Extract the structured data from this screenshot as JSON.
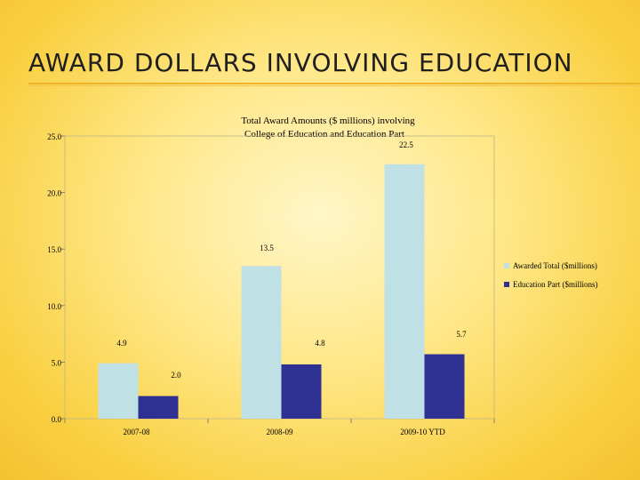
{
  "slide": {
    "title": "AWARD DOLLARS INVOLVING EDUCATION"
  },
  "chart_data": {
    "type": "bar",
    "title": "Total Award Amounts ($ millions) involving College of Education and Education Part",
    "title_lines": [
      "Total Award Amounts ($ millions) involving",
      "College of Education and Education Part"
    ],
    "categories": [
      "2007-08",
      "2008-09",
      "2009-10 YTD"
    ],
    "series": [
      {
        "name": "Awarded Total ($millions)",
        "values": [
          4.9,
          13.5,
          22.5
        ],
        "labels": [
          "4.9",
          "13.5",
          "22.5"
        ],
        "color": "#bfe0e4"
      },
      {
        "name": "Education Part ($millions)",
        "values": [
          2.0,
          4.8,
          5.7
        ],
        "labels": [
          "2.0",
          "4.8",
          "5.7"
        ],
        "color": "#2e3192"
      }
    ],
    "y_ticks": [
      0,
      5,
      10,
      15,
      20,
      25
    ],
    "y_tick_labels": [
      "0.0",
      "5.0",
      "10.0",
      "15.0",
      "20.0",
      "25.0"
    ],
    "ylim": [
      0,
      25
    ],
    "grid": false,
    "legend_position": "right"
  }
}
